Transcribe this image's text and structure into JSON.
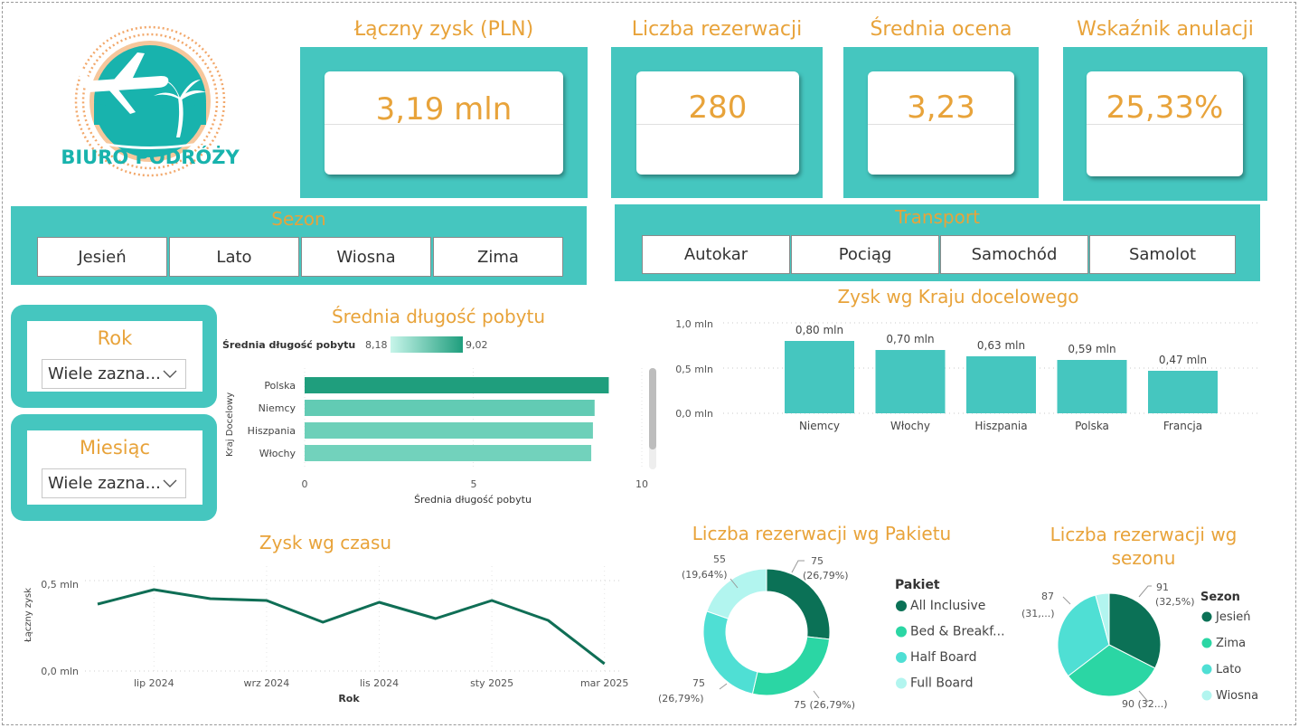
{
  "logo": {
    "text": "BIURO PODRÓŻY"
  },
  "kpis": {
    "profit": {
      "title": "Łączny zysk (PLN)",
      "value": "3,19 mln"
    },
    "bookings": {
      "title": "Liczba rezerwacji",
      "value": "280"
    },
    "rating": {
      "title": "Średnia ocena",
      "value": "3,23"
    },
    "cancel": {
      "title": "Wskaźnik anulacji",
      "value": "25,33%"
    }
  },
  "season_slicer": {
    "title": "Sezon",
    "items": [
      "Jesień",
      "Lato",
      "Wiosna",
      "Zima"
    ]
  },
  "transport_slicer": {
    "title": "Transport",
    "items": [
      "Autokar",
      "Pociąg",
      "Samochód",
      "Samolot"
    ]
  },
  "year_filter": {
    "title": "Rok",
    "value": "Wiele zazna..."
  },
  "month_filter": {
    "title": "Miesiąc",
    "value": "Wiele zazna..."
  },
  "stay_chart": {
    "title": "Średnia długość pobytu",
    "legend_label": "Średnia długość pobytu",
    "legend_min": "8,18",
    "legend_max": "9,02",
    "ylabel": "Kraj Docelowy",
    "xlabel": "Średnia długość pobytu",
    "ticks": [
      "0",
      "5",
      "10"
    ]
  },
  "country_chart": {
    "title": "Zysk wg Kraju docelowego",
    "ticks": [
      "1,0 mln",
      "0,5 mln",
      "0,0 mln"
    ]
  },
  "time_chart": {
    "title": "Zysk wg czasu",
    "ylabel": "Łączny zysk",
    "xlabel": "Rok",
    "yticks": [
      "0,5 mln",
      "0,0 mln"
    ],
    "xticks": [
      "lip 2024",
      "wrz 2024",
      "lis 2024",
      "sty 2025",
      "mar 2025"
    ]
  },
  "package_chart": {
    "title": "Liczba rezerwacji wg Pakietu",
    "legend_title": "Pakiet",
    "labels": [
      "75\n(26,79%)",
      "75 (26,79%)",
      "75\n(26,79%)",
      "55\n(19,64%)"
    ]
  },
  "season_chart": {
    "title_line1": "Liczba rezerwacji wg",
    "title_line2": "sezonu",
    "legend_title": "Sezon",
    "labels": [
      "91\n(32,5%)",
      "90 (32...)",
      "87\n(31,...)"
    ]
  },
  "chart_data": [
    {
      "type": "bar",
      "orientation": "horizontal",
      "title": "Średnia długość pobytu",
      "xlabel": "Średnia długość pobytu",
      "ylabel": "Kraj Docelowy",
      "categories": [
        "Polska",
        "Niemcy",
        "Hiszpania",
        "Włochy"
      ],
      "values": [
        9.02,
        8.6,
        8.55,
        8.5
      ],
      "xlim": [
        0,
        10
      ],
      "colors": [
        "#1f9e7d",
        "#62cbb4",
        "#6dd0b9",
        "#72d2bc"
      ]
    },
    {
      "type": "bar",
      "title": "Zysk wg Kraju docelowego",
      "categories": [
        "Niemcy",
        "Włochy",
        "Hiszpania",
        "Polska",
        "Francja"
      ],
      "values": [
        0.8,
        0.7,
        0.63,
        0.59,
        0.47
      ],
      "data_labels": [
        "0,80 mln",
        "0,70 mln",
        "0,63 mln",
        "0,59 mln",
        "0,47 mln"
      ],
      "ylim": [
        0,
        1.0
      ],
      "unit": "mln",
      "color": "#45c6bf"
    },
    {
      "type": "line",
      "title": "Zysk wg czasu",
      "xlabel": "Rok",
      "ylabel": "Łączny zysk",
      "x": [
        "2024-06",
        "2024-07",
        "2024-08",
        "2024-09",
        "2024-10",
        "2024-11",
        "2024-12",
        "2025-01",
        "2025-02",
        "2025-03"
      ],
      "values": [
        0.37,
        0.45,
        0.4,
        0.39,
        0.27,
        0.38,
        0.29,
        0.39,
        0.28,
        0.04
      ],
      "ylim": [
        0,
        0.6
      ],
      "color": "#0f6e55"
    },
    {
      "type": "pie",
      "donut": true,
      "title": "Liczba rezerwacji wg Pakietu",
      "legend_title": "Pakiet",
      "categories": [
        "All Inclusive",
        "Bed & Breakf...",
        "Half Board",
        "Full Board"
      ],
      "values": [
        75,
        75,
        75,
        55
      ],
      "colors": [
        "#0b7156",
        "#2bd6a4",
        "#4fdfd4",
        "#b2f5ef"
      ]
    },
    {
      "type": "pie",
      "title": "Liczba rezerwacji wg sezonu",
      "legend_title": "Sezon",
      "categories": [
        "Jesień",
        "Zima",
        "Lato",
        "Wiosna"
      ],
      "values": [
        91,
        90,
        87,
        12
      ],
      "colors": [
        "#0b7156",
        "#2bd6a4",
        "#4fdfd4",
        "#b2f5ef"
      ]
    }
  ]
}
